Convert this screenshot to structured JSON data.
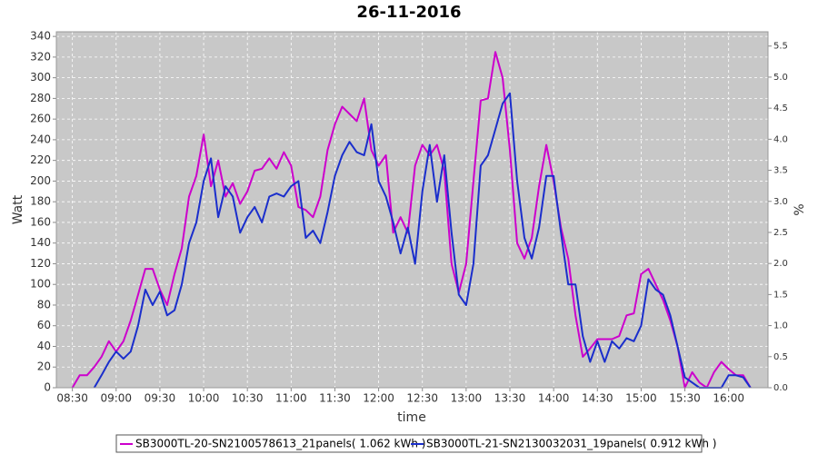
{
  "chart_data": {
    "type": "line",
    "title": "26-11-2016",
    "x_label": "time",
    "y_label": "Watt",
    "y2_label": "%",
    "x": [
      510,
      515,
      520,
      525,
      530,
      535,
      540,
      545,
      550,
      555,
      560,
      565,
      570,
      575,
      580,
      585,
      590,
      595,
      600,
      605,
      610,
      615,
      620,
      625,
      630,
      635,
      640,
      645,
      650,
      655,
      660,
      665,
      670,
      675,
      680,
      685,
      690,
      695,
      700,
      705,
      710,
      715,
      720,
      725,
      730,
      735,
      740,
      745,
      750,
      755,
      760,
      765,
      770,
      775,
      780,
      785,
      790,
      795,
      800,
      805,
      810,
      815,
      820,
      825,
      830,
      835,
      840,
      845,
      850,
      855,
      860,
      865,
      870,
      875,
      880,
      885,
      890,
      895,
      900,
      905,
      910,
      915,
      920,
      925,
      930,
      935,
      940,
      945,
      950,
      955,
      960,
      965,
      970,
      975
    ],
    "series": [
      {
        "name": "SB3000TL-20-SN2100578613_21panels( 1.062 kWh )",
        "color": "#cc00cc",
        "values": [
          0,
          12,
          12,
          20,
          30,
          45,
          35,
          45,
          65,
          90,
          115,
          115,
          95,
          80,
          110,
          135,
          185,
          205,
          245,
          195,
          220,
          185,
          198,
          178,
          190,
          210,
          212,
          222,
          212,
          228,
          215,
          175,
          172,
          165,
          185,
          230,
          255,
          272,
          265,
          258,
          280,
          230,
          215,
          225,
          150,
          165,
          150,
          215,
          235,
          225,
          235,
          210,
          120,
          92,
          120,
          200,
          278,
          280,
          325,
          300,
          230,
          140,
          125,
          145,
          195,
          235,
          200,
          155,
          125,
          70,
          30,
          38,
          47,
          47,
          47,
          50,
          70,
          72,
          110,
          115,
          100,
          85,
          65,
          40,
          0,
          15,
          5,
          0,
          15,
          25,
          18,
          12,
          12,
          0
        ]
      },
      {
        "name": "SB3000TL-21-SN2130032031_19panels( 0.912 kWh )",
        "color": "#1a2ecc",
        "values": [
          null,
          null,
          null,
          0,
          12,
          25,
          35,
          28,
          35,
          60,
          95,
          80,
          93,
          70,
          75,
          100,
          140,
          160,
          200,
          222,
          165,
          195,
          185,
          150,
          165,
          175,
          160,
          185,
          188,
          185,
          195,
          200,
          145,
          152,
          140,
          170,
          205,
          225,
          238,
          228,
          225,
          255,
          200,
          185,
          160,
          130,
          155,
          120,
          190,
          235,
          180,
          225,
          150,
          90,
          80,
          120,
          215,
          225,
          250,
          275,
          285,
          200,
          145,
          125,
          155,
          205,
          205,
          150,
          100,
          100,
          50,
          25,
          45,
          25,
          45,
          38,
          48,
          45,
          60,
          105,
          95,
          90,
          70,
          40,
          10,
          5,
          0,
          0,
          0,
          0,
          12,
          12,
          10,
          0
        ]
      }
    ],
    "xlim": [
      499,
      987
    ],
    "xticks": [
      {
        "value": 510,
        "label": "08:30"
      },
      {
        "value": 540,
        "label": "09:00"
      },
      {
        "value": 570,
        "label": "09:30"
      },
      {
        "value": 600,
        "label": "10:00"
      },
      {
        "value": 630,
        "label": "10:30"
      },
      {
        "value": 660,
        "label": "11:00"
      },
      {
        "value": 690,
        "label": "11:30"
      },
      {
        "value": 720,
        "label": "12:00"
      },
      {
        "value": 750,
        "label": "12:30"
      },
      {
        "value": 780,
        "label": "13:00"
      },
      {
        "value": 810,
        "label": "13:30"
      },
      {
        "value": 840,
        "label": "14:00"
      },
      {
        "value": 870,
        "label": "14:30"
      },
      {
        "value": 900,
        "label": "15:00"
      },
      {
        "value": 930,
        "label": "15:30"
      },
      {
        "value": 960,
        "label": "16:00"
      }
    ],
    "ylim": [
      0,
      344.5
    ],
    "yticks": [
      0,
      20,
      40,
      60,
      80,
      100,
      120,
      140,
      160,
      180,
      200,
      220,
      240,
      260,
      280,
      300,
      320,
      340
    ],
    "y2lim": [
      0,
      5.73
    ],
    "y2ticks": [
      {
        "value": 0,
        "label": "0.0"
      },
      0.5,
      {
        "value": 1,
        "label": "1.0"
      },
      1.5,
      {
        "value": 2,
        "label": "2.0"
      },
      2.5,
      {
        "value": 3,
        "label": "3.0"
      },
      3.5,
      {
        "value": 4,
        "label": "4.0"
      },
      4.5,
      {
        "value": 5,
        "label": "5.0"
      },
      5.5
    ],
    "grid": true,
    "legend": "bottom"
  }
}
